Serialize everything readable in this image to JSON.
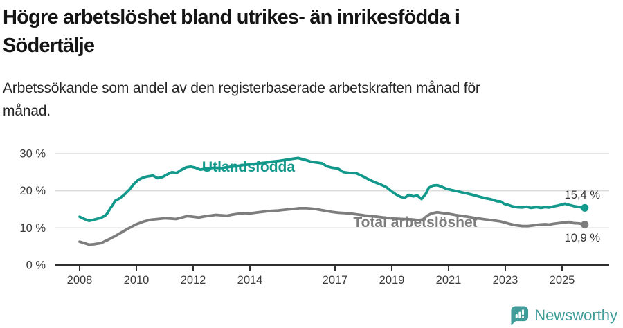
{
  "header": {
    "title": "Högre arbetslöshet bland utrikes- än inrikesfödda i\nSödertälje",
    "subtitle": "Arbetssökande som andel av den registerbaserade arbetskraften månad för\nmånad."
  },
  "chart_data": {
    "type": "line",
    "title": "Högre arbetslöshet bland utrikes- än inrikesfödda i Södertälje",
    "subtitle": "Arbetssökande som andel av den registerbaserade arbetskraften månad för månad.",
    "unit": "%",
    "grid": true,
    "legend_position": "inline-labels-on-lines",
    "xlim": [
      2007.2,
      2026.6
    ],
    "ylim": [
      0,
      32
    ],
    "x_ticks": [
      2008,
      2010,
      2012,
      2014,
      2017,
      2019,
      2021,
      2023,
      2025
    ],
    "y_ticks": [
      {
        "v": 0,
        "label": "0 %"
      },
      {
        "v": 10,
        "label": "10 %"
      },
      {
        "v": 20,
        "label": "20 %"
      },
      {
        "v": 30,
        "label": "30 %"
      }
    ],
    "series": [
      {
        "name": "Utlandsfödda",
        "color": "#13998b",
        "end_label": "15,4 %",
        "end_value": 15.4,
        "points": [
          [
            2008,
            13
          ],
          [
            2008.17,
            12.4
          ],
          [
            2008.33,
            11.9
          ],
          [
            2008.5,
            12.2
          ],
          [
            2008.75,
            12.7
          ],
          [
            2008.92,
            13.4
          ],
          [
            2009,
            14.2
          ],
          [
            2009.08,
            15.3
          ],
          [
            2009.17,
            16.2
          ],
          [
            2009.25,
            17.3
          ],
          [
            2009.42,
            18
          ],
          [
            2009.58,
            19
          ],
          [
            2009.75,
            20.3
          ],
          [
            2009.92,
            21.9
          ],
          [
            2010.08,
            23
          ],
          [
            2010.25,
            23.6
          ],
          [
            2010.42,
            23.9
          ],
          [
            2010.58,
            24.1
          ],
          [
            2010.75,
            23.4
          ],
          [
            2010.92,
            23.7
          ],
          [
            2011.08,
            24.4
          ],
          [
            2011.25,
            25
          ],
          [
            2011.42,
            24.8
          ],
          [
            2011.58,
            25.6
          ],
          [
            2011.75,
            26.3
          ],
          [
            2011.92,
            26.5
          ],
          [
            2012.08,
            26.2
          ],
          [
            2012.25,
            25.7
          ],
          [
            2012.5,
            26
          ],
          [
            2012.75,
            26.2
          ],
          [
            2013,
            26.1
          ],
          [
            2013.25,
            26.4
          ],
          [
            2013.5,
            26.6
          ],
          [
            2013.75,
            26.9
          ],
          [
            2014,
            27.1
          ],
          [
            2014.25,
            27.3
          ],
          [
            2014.5,
            27.5
          ],
          [
            2014.75,
            27.8
          ],
          [
            2015,
            28
          ],
          [
            2015.25,
            28.3
          ],
          [
            2015.5,
            28.6
          ],
          [
            2015.7,
            28.8
          ],
          [
            2015.85,
            28.5
          ],
          [
            2016,
            28.2
          ],
          [
            2016.15,
            27.8
          ],
          [
            2016.35,
            27.6
          ],
          [
            2016.55,
            27.4
          ],
          [
            2016.7,
            26.6
          ],
          [
            2016.9,
            26.2
          ],
          [
            2017.1,
            26
          ],
          [
            2017.3,
            25
          ],
          [
            2017.5,
            24.8
          ],
          [
            2017.75,
            24.7
          ],
          [
            2017.95,
            24
          ],
          [
            2018.15,
            23.2
          ],
          [
            2018.4,
            22.3
          ],
          [
            2018.6,
            21.7
          ],
          [
            2018.8,
            21
          ],
          [
            2019,
            19.8
          ],
          [
            2019.15,
            19
          ],
          [
            2019.3,
            18.4
          ],
          [
            2019.45,
            18.1
          ],
          [
            2019.6,
            18.9
          ],
          [
            2019.75,
            18.5
          ],
          [
            2019.9,
            18.7
          ],
          [
            2020.05,
            17.8
          ],
          [
            2020.2,
            19.2
          ],
          [
            2020.3,
            20.8
          ],
          [
            2020.45,
            21.4
          ],
          [
            2020.6,
            21.5
          ],
          [
            2020.75,
            21.1
          ],
          [
            2020.9,
            20.6
          ],
          [
            2021.1,
            20.2
          ],
          [
            2021.3,
            19.9
          ],
          [
            2021.5,
            19.5
          ],
          [
            2021.7,
            19.2
          ],
          [
            2021.9,
            18.8
          ],
          [
            2022.1,
            18.4
          ],
          [
            2022.3,
            18
          ],
          [
            2022.5,
            17.7
          ],
          [
            2022.7,
            17.2
          ],
          [
            2022.85,
            17.1
          ],
          [
            2022.95,
            16.5
          ],
          [
            2023.1,
            16.2
          ],
          [
            2023.25,
            15.8
          ],
          [
            2023.4,
            15.6
          ],
          [
            2023.6,
            15.5
          ],
          [
            2023.75,
            15.7
          ],
          [
            2023.9,
            15.4
          ],
          [
            2024.1,
            15.6
          ],
          [
            2024.25,
            15.4
          ],
          [
            2024.4,
            15.6
          ],
          [
            2024.55,
            15.5
          ],
          [
            2024.7,
            15.8
          ],
          [
            2024.85,
            16
          ],
          [
            2025,
            16.3
          ],
          [
            2025.1,
            16.5
          ],
          [
            2025.25,
            16.2
          ],
          [
            2025.4,
            15.9
          ],
          [
            2025.55,
            15.7
          ],
          [
            2025.8,
            15.4
          ]
        ]
      },
      {
        "name": "Total arbetslöshet",
        "color": "#7d7d7d",
        "end_label": "10,9 %",
        "end_value": 10.9,
        "points": [
          [
            2008,
            6.3
          ],
          [
            2008.17,
            5.9
          ],
          [
            2008.33,
            5.5
          ],
          [
            2008.5,
            5.6
          ],
          [
            2008.75,
            5.9
          ],
          [
            2009,
            6.8
          ],
          [
            2009.25,
            7.8
          ],
          [
            2009.5,
            8.9
          ],
          [
            2009.75,
            10
          ],
          [
            2010,
            11
          ],
          [
            2010.25,
            11.7
          ],
          [
            2010.5,
            12.2
          ],
          [
            2010.75,
            12.4
          ],
          [
            2011,
            12.6
          ],
          [
            2011.2,
            12.5
          ],
          [
            2011.4,
            12.4
          ],
          [
            2011.6,
            12.8
          ],
          [
            2011.8,
            13.2
          ],
          [
            2012,
            13
          ],
          [
            2012.2,
            12.8
          ],
          [
            2012.4,
            13.1
          ],
          [
            2012.6,
            13.3
          ],
          [
            2012.8,
            13.5
          ],
          [
            2013,
            13.4
          ],
          [
            2013.2,
            13.3
          ],
          [
            2013.4,
            13.6
          ],
          [
            2013.6,
            13.8
          ],
          [
            2013.8,
            14
          ],
          [
            2014,
            13.9
          ],
          [
            2014.2,
            14.1
          ],
          [
            2014.4,
            14.3
          ],
          [
            2014.6,
            14.5
          ],
          [
            2014.8,
            14.6
          ],
          [
            2015,
            14.7
          ],
          [
            2015.25,
            14.9
          ],
          [
            2015.5,
            15.1
          ],
          [
            2015.75,
            15.3
          ],
          [
            2016,
            15.3
          ],
          [
            2016.3,
            15.1
          ],
          [
            2016.6,
            14.7
          ],
          [
            2016.9,
            14.3
          ],
          [
            2017.1,
            14.1
          ],
          [
            2017.35,
            14
          ],
          [
            2017.6,
            13.8
          ],
          [
            2017.9,
            13.5
          ],
          [
            2018.2,
            13.2
          ],
          [
            2018.5,
            13
          ],
          [
            2018.8,
            12.7
          ],
          [
            2019.1,
            12.5
          ],
          [
            2019.4,
            12.4
          ],
          [
            2019.7,
            12.3
          ],
          [
            2019.95,
            12.1
          ],
          [
            2020.1,
            12.3
          ],
          [
            2020.25,
            13.3
          ],
          [
            2020.4,
            13.9
          ],
          [
            2020.6,
            14.2
          ],
          [
            2020.8,
            14
          ],
          [
            2021,
            13.8
          ],
          [
            2021.3,
            13.4
          ],
          [
            2021.6,
            13.1
          ],
          [
            2021.9,
            12.7
          ],
          [
            2022.2,
            12.4
          ],
          [
            2022.5,
            12.1
          ],
          [
            2022.8,
            11.8
          ],
          [
            2023,
            11.4
          ],
          [
            2023.2,
            11
          ],
          [
            2023.4,
            10.7
          ],
          [
            2023.6,
            10.5
          ],
          [
            2023.8,
            10.5
          ],
          [
            2024,
            10.7
          ],
          [
            2024.2,
            10.9
          ],
          [
            2024.4,
            11
          ],
          [
            2024.55,
            10.9
          ],
          [
            2024.7,
            11.1
          ],
          [
            2024.9,
            11.3
          ],
          [
            2025.1,
            11.5
          ],
          [
            2025.25,
            11.6
          ],
          [
            2025.4,
            11.3
          ],
          [
            2025.6,
            11.2
          ],
          [
            2025.8,
            10.9
          ]
        ]
      }
    ]
  },
  "branding": {
    "name": "Newsworthy",
    "color": "#3f9c98",
    "icon": "newsworthy-speech-bubble-bar-chart-icon"
  }
}
